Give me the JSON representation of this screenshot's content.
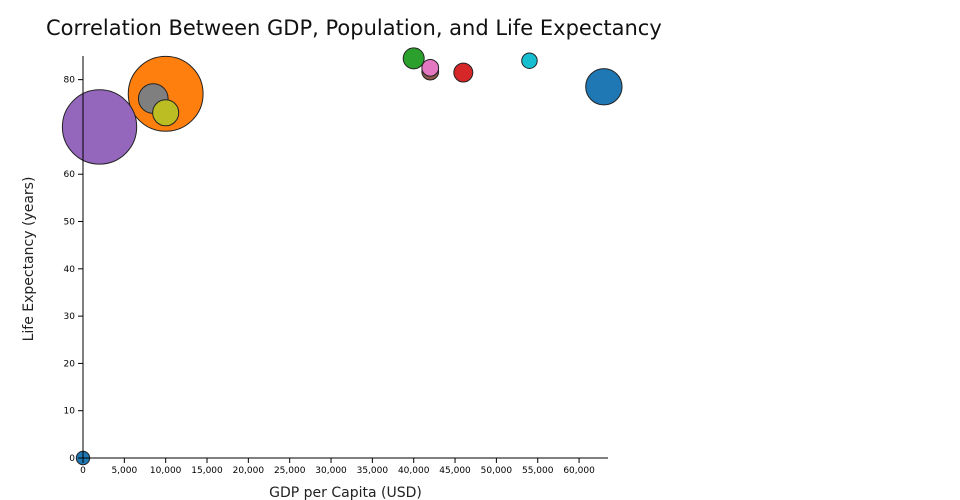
{
  "chart_data": {
    "type": "scatter",
    "title": "Correlation Between GDP, Population, and Life Expectancy",
    "xlabel": "GDP per Capita (USD)",
    "ylabel": "Life Expectancy (years)",
    "xlim": [
      0,
      63500
    ],
    "ylim": [
      0,
      85
    ],
    "x_ticks": [
      0,
      5000,
      10000,
      15000,
      20000,
      25000,
      30000,
      35000,
      40000,
      45000,
      50000,
      55000,
      60000
    ],
    "x_tick_labels": [
      "0",
      "5,000",
      "10,000",
      "15,000",
      "20,000",
      "25,000",
      "30,000",
      "35,000",
      "40,000",
      "45,000",
      "50,000",
      "55,000",
      "60,000"
    ],
    "y_ticks": [
      0,
      10,
      20,
      30,
      40,
      50,
      60,
      80
    ],
    "y_tick_labels": [
      "0",
      "10",
      "20",
      "30",
      "40",
      "50",
      "60",
      "80"
    ],
    "grid": false,
    "points": [
      {
        "x": 63000,
        "y": 78.5,
        "size": 330,
        "color": "#1f77b4"
      },
      {
        "x": 10000,
        "y": 77.0,
        "size": 1400,
        "color": "#ff7f0e"
      },
      {
        "x": 2000,
        "y": 70.0,
        "size": 1380,
        "color": "#9467bd"
      },
      {
        "x": 40000,
        "y": 84.5,
        "size": 110,
        "color": "#2ca02c"
      },
      {
        "x": 46000,
        "y": 81.5,
        "size": 90,
        "color": "#d62728"
      },
      {
        "x": 42000,
        "y": 81.7,
        "size": 70,
        "color": "#8c564b"
      },
      {
        "x": 42000,
        "y": 82.5,
        "size": 70,
        "color": "#e377c2"
      },
      {
        "x": 8500,
        "y": 76.0,
        "size": 220,
        "color": "#7f7f7f"
      },
      {
        "x": 10000,
        "y": 73.0,
        "size": 170,
        "color": "#bcbd22"
      },
      {
        "x": 54000,
        "y": 84.0,
        "size": 60,
        "color": "#17becf"
      },
      {
        "x": 0,
        "y": 0,
        "size": 45,
        "color": "#1f77b4"
      }
    ]
  }
}
